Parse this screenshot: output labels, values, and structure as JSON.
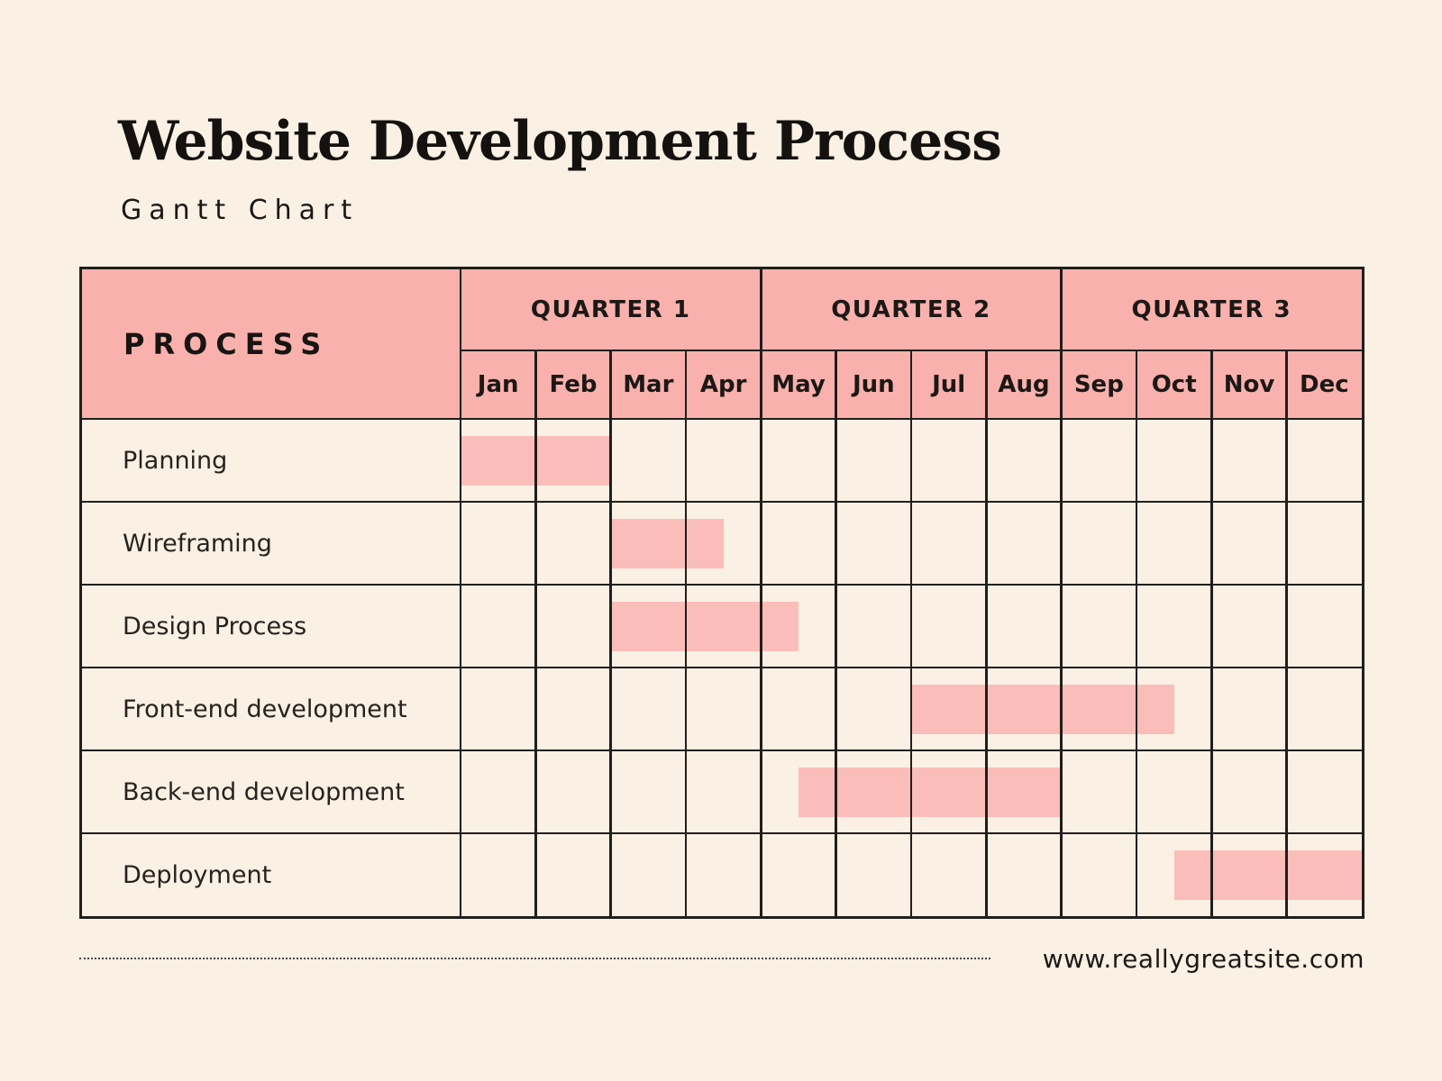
{
  "header": {
    "title": "Website Development Process",
    "subtitle": "Gantt Chart"
  },
  "table": {
    "process_label": "PROCESS"
  },
  "chart_data": {
    "type": "bar",
    "subtype": "gantt",
    "title": "Website Development Process",
    "subtitle": "Gantt Chart",
    "x_unit": "month",
    "x_range": [
      0,
      12
    ],
    "grid": true,
    "legend": false,
    "months": [
      "Jan",
      "Feb",
      "Mar",
      "Apr",
      "May",
      "Jun",
      "Jul",
      "Aug",
      "Sep",
      "Oct",
      "Nov",
      "Dec"
    ],
    "quarters": [
      {
        "label": "QUARTER 1",
        "start_month": 0,
        "end_month": 4
      },
      {
        "label": "QUARTER 2",
        "start_month": 4,
        "end_month": 8
      },
      {
        "label": "QUARTER 3",
        "start_month": 8,
        "end_month": 12
      }
    ],
    "tasks": [
      {
        "name": "Planning",
        "start_month": 0,
        "end_month": 2
      },
      {
        "name": "Wireframing",
        "start_month": 2,
        "end_month": 3.5
      },
      {
        "name": "Design Process",
        "start_month": 2,
        "end_month": 4.5
      },
      {
        "name": "Front-end development",
        "start_month": 6,
        "end_month": 9.5
      },
      {
        "name": "Back-end development",
        "start_month": 4.5,
        "end_month": 8
      },
      {
        "name": "Deployment",
        "start_month": 9.5,
        "end_month": 12
      }
    ]
  },
  "footer": {
    "url": "www.reallygreatsite.com"
  },
  "colors": {
    "background": "#FAF0E4",
    "header_fill": "#F9B1AD",
    "bar_fill": "#FABDB9",
    "grid_line": "#211E1B",
    "text": "#171411"
  }
}
